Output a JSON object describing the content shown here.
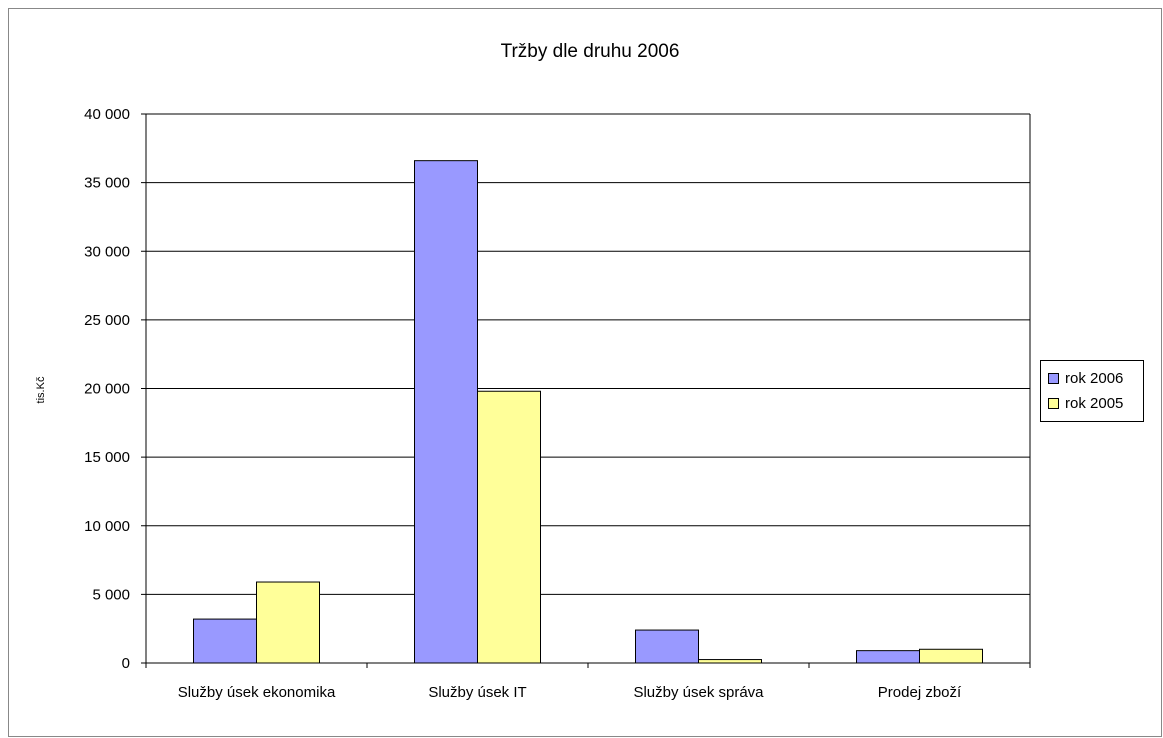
{
  "chart_data": {
    "type": "bar",
    "title": "Tržby dle druhu 2006",
    "xlabel": "",
    "ylabel": "tis.Kč",
    "ylim": [
      0,
      40000
    ],
    "yticks": [
      "0",
      "5 000",
      "10 000",
      "15 000",
      "20 000",
      "25 000",
      "30 000",
      "35 000",
      "40 000"
    ],
    "categories": [
      "Služby úsek ekonomika",
      "Služby úsek IT",
      "Služby úsek správa",
      "Prodej zboží"
    ],
    "series": [
      {
        "name": "rok 2006",
        "color": "#9999ff",
        "values": [
          3200,
          36600,
          2400,
          900
        ]
      },
      {
        "name": "rok 2005",
        "color": "#ffff99",
        "values": [
          5900,
          19800,
          250,
          1000
        ]
      }
    ],
    "grid": true,
    "legend": "right"
  }
}
